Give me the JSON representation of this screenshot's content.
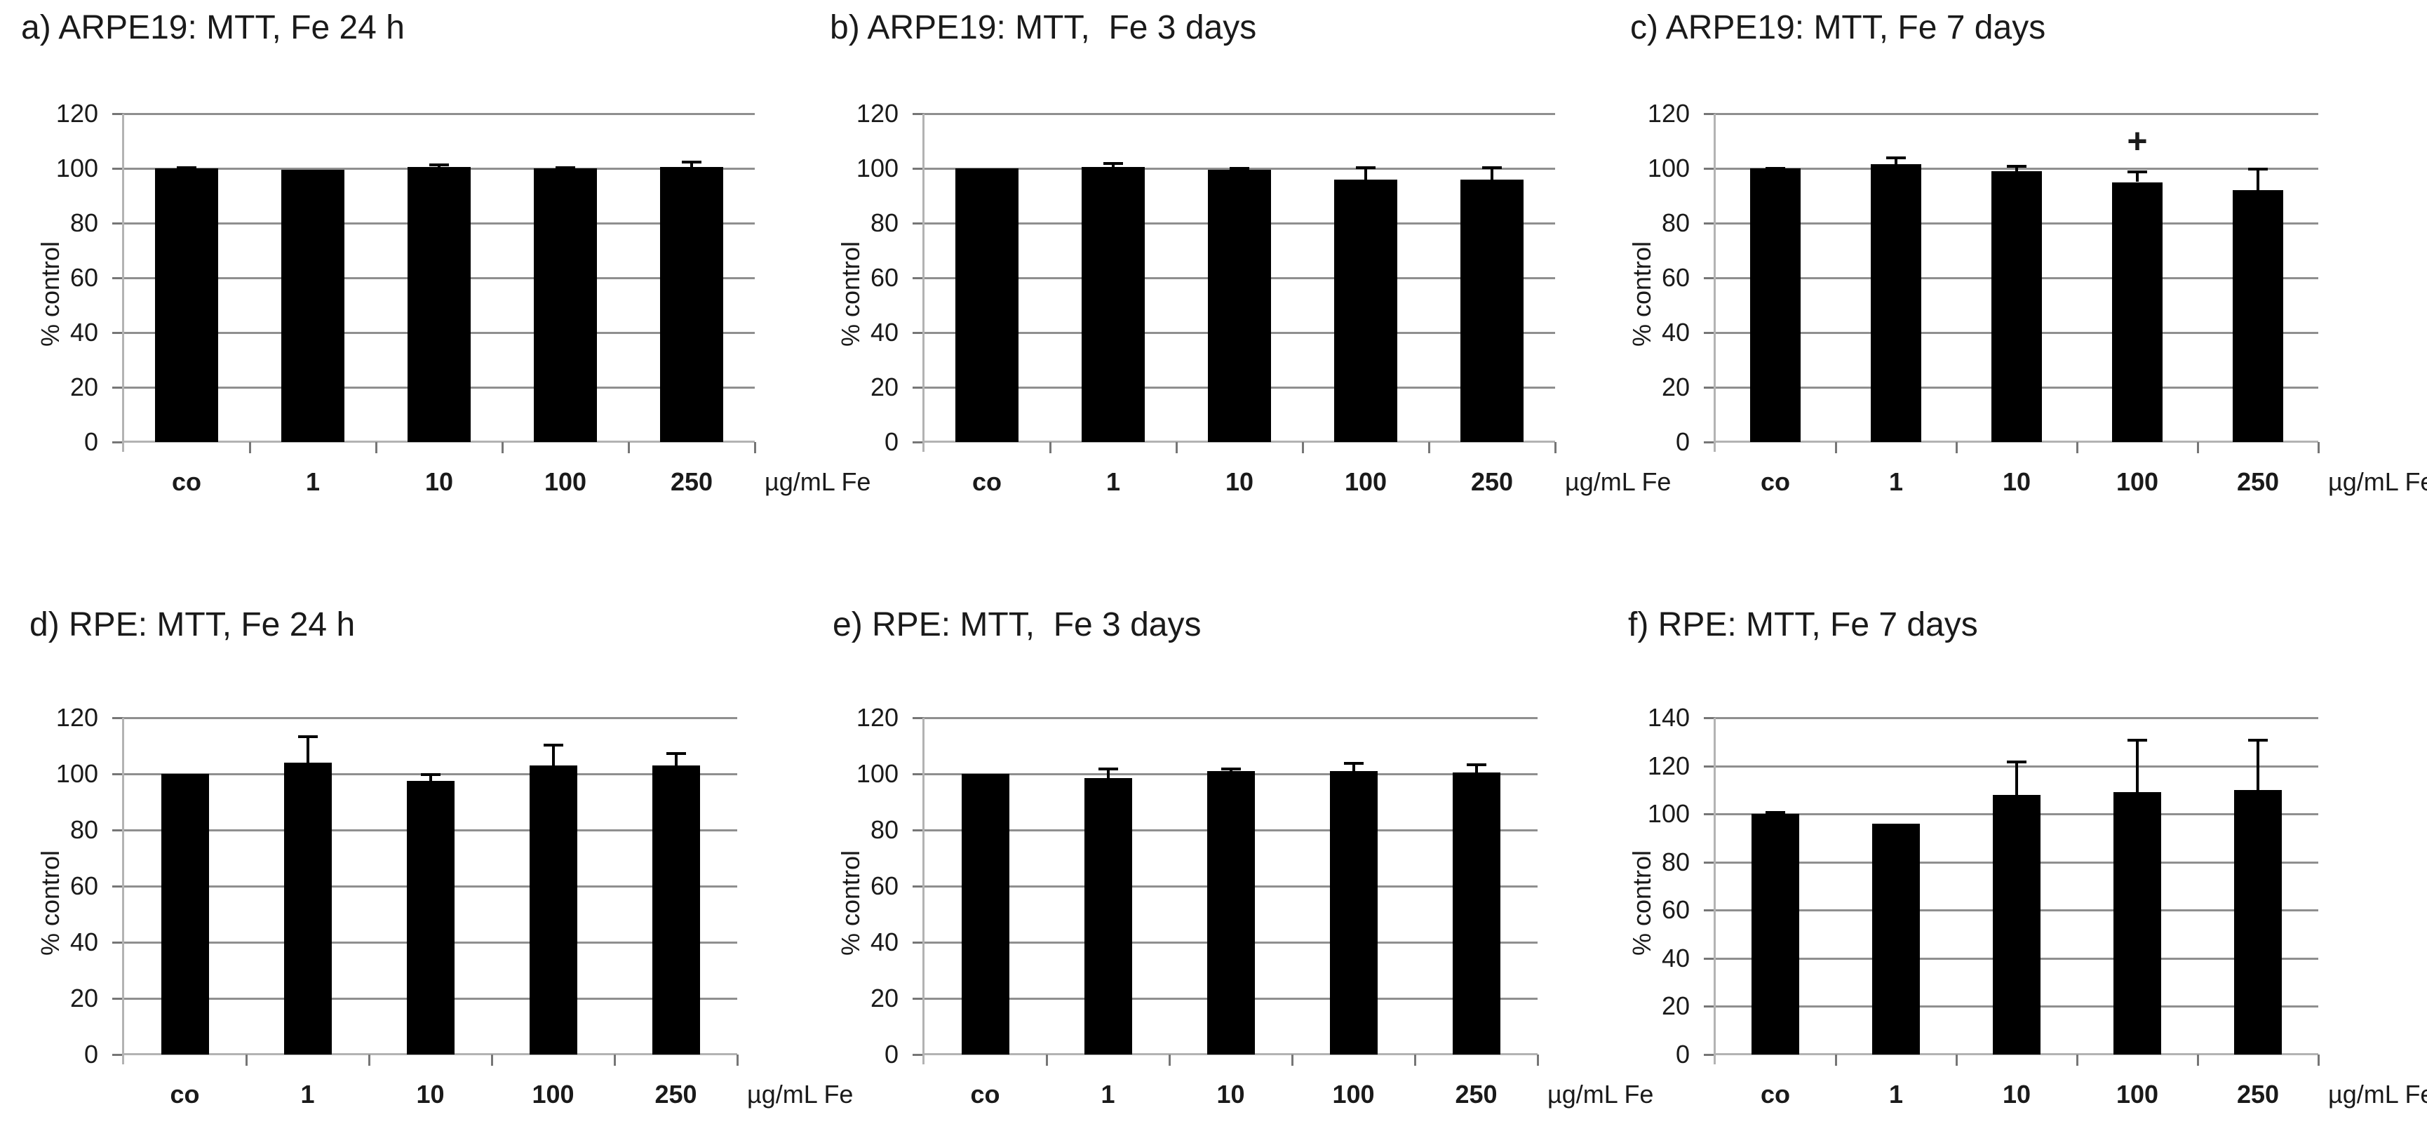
{
  "colors": {
    "bar": "#000000",
    "gridline": "#8f8f8f",
    "axis_line": "#b3b3b3",
    "tick": "#767676",
    "text": "#1a1a1a",
    "background": "#ffffff"
  },
  "chart_data": [
    {
      "panel": "a",
      "type": "bar",
      "title": "a) ARPE19: MTT, Fe 24 h",
      "ylabel": "% control",
      "x_unit_label": "µg/mL Fe",
      "categories": [
        "co",
        "1",
        "10",
        "100",
        "250"
      ],
      "values": [
        100,
        99.5,
        100.5,
        100,
        100.5
      ],
      "errors": [
        0.5,
        0,
        1,
        0.5,
        2
      ],
      "ylim": [
        0,
        120
      ],
      "ytick_step": 20,
      "grid": true,
      "annotations": []
    },
    {
      "panel": "b",
      "type": "bar",
      "title": "b) ARPE19: MTT,  Fe 3 days",
      "ylabel": "% control",
      "x_unit_label": "µg/mL Fe",
      "categories": [
        "co",
        "1",
        "10",
        "100",
        "250"
      ],
      "values": [
        100,
        100.5,
        99.5,
        96,
        96
      ],
      "errors": [
        0,
        1.5,
        0.8,
        4.5,
        4.5
      ],
      "ylim": [
        0,
        120
      ],
      "ytick_step": 20,
      "grid": true,
      "annotations": []
    },
    {
      "panel": "c",
      "type": "bar",
      "title": "c) ARPE19: MTT, Fe 7 days",
      "ylabel": "% control",
      "x_unit_label": "µg/mL Fe",
      "categories": [
        "co",
        "1",
        "10",
        "100",
        "250"
      ],
      "values": [
        100,
        101.5,
        99,
        95,
        92
      ],
      "errors": [
        0.3,
        2.5,
        2,
        4,
        8
      ],
      "ylim": [
        0,
        120
      ],
      "ytick_step": 20,
      "grid": true,
      "annotations": [
        {
          "category": "100",
          "category_index": 3,
          "text": "+",
          "value": 109
        }
      ]
    },
    {
      "panel": "d",
      "type": "bar",
      "title": "d) RPE: MTT, Fe 24 h",
      "ylabel": "% control",
      "x_unit_label": "µg/mL Fe",
      "categories": [
        "co",
        "1",
        "10",
        "100",
        "250"
      ],
      "values": [
        100,
        104,
        97.5,
        103,
        103
      ],
      "errors": [
        0,
        9.5,
        2.5,
        7.5,
        4.5
      ],
      "ylim": [
        0,
        120
      ],
      "ytick_step": 20,
      "grid": true,
      "annotations": []
    },
    {
      "panel": "e",
      "type": "bar",
      "title": "e) RPE: MTT,  Fe 3 days",
      "ylabel": "% control",
      "x_unit_label": "µg/mL Fe",
      "categories": [
        "co",
        "1",
        "10",
        "100",
        "250"
      ],
      "values": [
        100,
        98.5,
        101,
        101,
        100.5
      ],
      "errors": [
        0,
        3.5,
        1,
        3,
        3
      ],
      "ylim": [
        0,
        120
      ],
      "ytick_step": 20,
      "grid": true,
      "annotations": []
    },
    {
      "panel": "f",
      "type": "bar",
      "title": "f) RPE: MTT, Fe 7 days",
      "ylabel": "% control",
      "x_unit_label": "µg/mL Fe",
      "categories": [
        "co",
        "1",
        "10",
        "100",
        "250"
      ],
      "values": [
        100,
        96,
        108,
        109,
        110
      ],
      "errors": [
        0.8,
        0,
        14,
        22,
        21
      ],
      "ylim": [
        0,
        140
      ],
      "ytick_step": 20,
      "grid": true,
      "annotations": []
    }
  ]
}
